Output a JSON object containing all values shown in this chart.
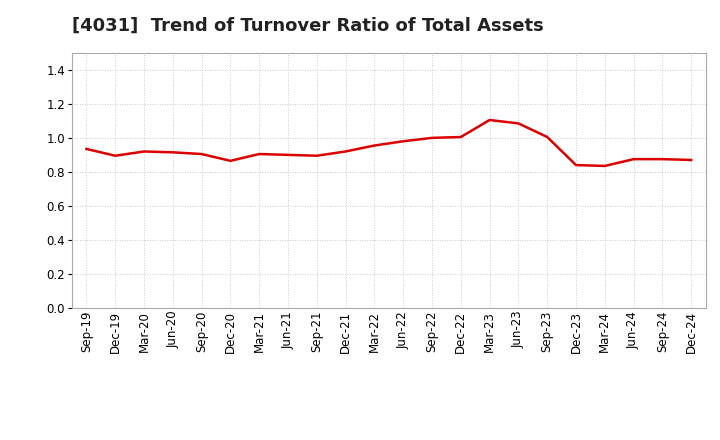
{
  "title": "[4031]  Trend of Turnover Ratio of Total Assets",
  "x_labels": [
    "Sep-19",
    "Dec-19",
    "Mar-20",
    "Jun-20",
    "Sep-20",
    "Dec-20",
    "Mar-21",
    "Jun-21",
    "Sep-21",
    "Dec-21",
    "Mar-22",
    "Jun-22",
    "Sep-22",
    "Dec-22",
    "Mar-23",
    "Jun-23",
    "Sep-23",
    "Dec-23",
    "Mar-24",
    "Jun-24",
    "Sep-24",
    "Dec-24"
  ],
  "y_values": [
    0.935,
    0.895,
    0.92,
    0.915,
    0.905,
    0.865,
    0.905,
    0.9,
    0.895,
    0.92,
    0.955,
    0.98,
    1.0,
    1.005,
    1.105,
    1.085,
    1.005,
    0.84,
    0.835,
    0.875,
    0.875,
    0.87
  ],
  "line_color": "#dd0000",
  "line_width": 1.8,
  "ylim": [
    0.0,
    1.5
  ],
  "yticks": [
    0.0,
    0.2,
    0.4,
    0.6,
    0.8,
    1.0,
    1.2,
    1.4
  ],
  "background_color": "#ffffff",
  "grid_color": "#bbbbbb",
  "title_fontsize": 13,
  "tick_fontsize": 8.5
}
